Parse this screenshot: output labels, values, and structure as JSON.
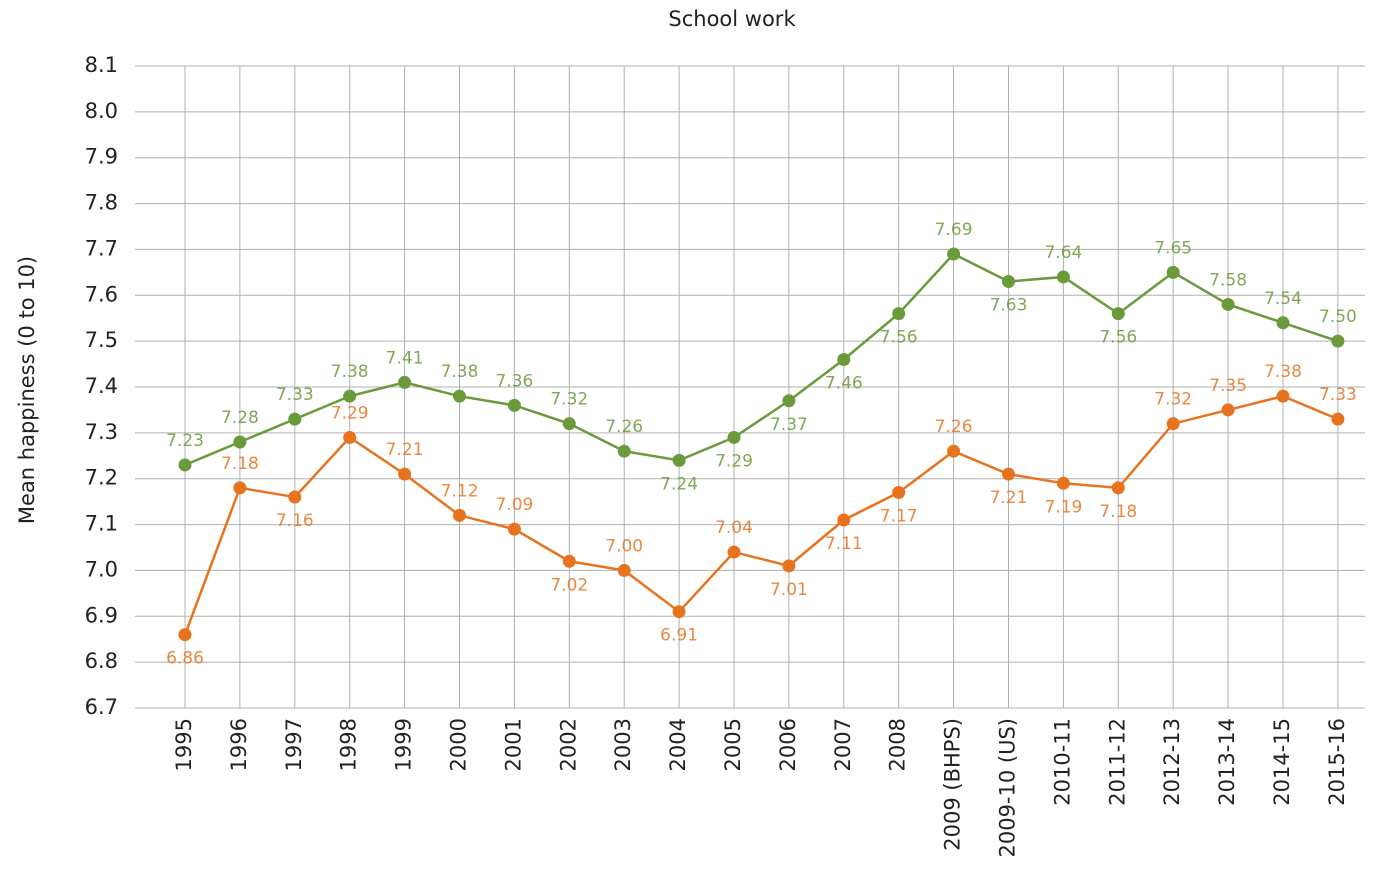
{
  "chart_data": {
    "type": "line",
    "title": "School work",
    "y_label": "Mean happiness (0 to 10)",
    "categories": [
      "1995",
      "1996",
      "1997",
      "1998",
      "1999",
      "2000",
      "2001",
      "2002",
      "2003",
      "2004",
      "2005",
      "2006",
      "2007",
      "2008",
      "2009 (BHPS)",
      "2009-10 (US)",
      "2010-11",
      "2011-12",
      "2012-13",
      "2013-14",
      "2014-15",
      "2015-16"
    ],
    "series": [
      {
        "color": "#6a9a3a",
        "values": [
          7.23,
          7.28,
          7.33,
          7.38,
          7.41,
          7.38,
          7.36,
          7.32,
          7.26,
          7.24,
          7.29,
          7.37,
          7.46,
          7.56,
          7.69,
          7.63,
          7.64,
          7.56,
          7.65,
          7.58,
          7.54,
          7.5
        ],
        "value_labels": [
          "7.23",
          "7.28",
          "7.33",
          "7.38",
          "7.41",
          "7.38",
          "7.36",
          "7.32",
          "7.26",
          "7.24",
          "7.29",
          "7.37",
          "7.46",
          "7.56",
          "7.69",
          "7.63",
          "7.64",
          "7.56",
          "7.65",
          "7.58",
          "7.54",
          "7.50"
        ]
      },
      {
        "color": "#e8731f",
        "values": [
          6.86,
          7.18,
          7.16,
          7.29,
          7.21,
          7.12,
          7.09,
          7.02,
          7,
          6.91,
          7.04,
          7.01,
          7.11,
          7.17,
          7.26,
          7.21,
          7.19,
          7.18,
          7.32,
          7.35,
          7.38,
          7.33
        ],
        "value_labels": [
          "6.86",
          "7.18",
          "7.16",
          "7.29",
          "7.21",
          "7.12",
          "7.09",
          "7.02",
          "7.00",
          "6.91",
          "7.04",
          "7.01",
          "7.11",
          "7.17",
          "7.26",
          "7.21",
          "7.19",
          "7.18",
          "7.32",
          "7.35",
          "7.38",
          "7.33"
        ]
      }
    ],
    "ylim": [
      6.7,
      8.1
    ],
    "yticks": [
      6.7,
      6.8,
      6.9,
      {
        "value": 7,
        "label": "7.0"
      },
      7.1,
      7.2,
      7.3,
      7.4,
      7.5,
      7.6,
      7.7,
      7.8,
      7.9,
      {
        "value": 8,
        "label": "8.0"
      },
      8.1
    ],
    "grid": true
  }
}
